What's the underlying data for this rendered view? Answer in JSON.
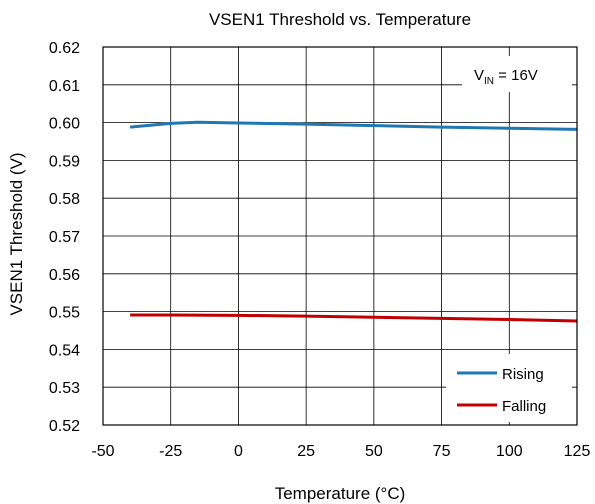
{
  "chart_data": {
    "type": "line",
    "title": "VSEN1 Threshold vs. Temperature",
    "xlabel": "Temperature (°C)",
    "ylabel": "VSEN1 Threshold  (V)",
    "xlim": [
      -50,
      125
    ],
    "ylim": [
      0.52,
      0.62
    ],
    "xticks": [
      -50,
      -25,
      0,
      25,
      50,
      75,
      100,
      125
    ],
    "yticks": [
      0.52,
      0.53,
      0.54,
      0.55,
      0.56,
      0.57,
      0.58,
      0.59,
      0.6,
      0.61,
      0.62
    ],
    "xtick_labels": [
      "-50",
      "-25",
      "0",
      "25",
      "50",
      "75",
      "100",
      "125"
    ],
    "ytick_labels": [
      "0.52",
      "0.53",
      "0.54",
      "0.55",
      "0.56",
      "0.57",
      "0.58",
      "0.59",
      "0.60",
      "0.61",
      "0.62"
    ],
    "grid": true,
    "annotation": {
      "symbol": "V",
      "subscript": "IN",
      "text": " = 16V"
    },
    "legend": {
      "placement": "bottom-right"
    },
    "series": [
      {
        "name": "Rising",
        "color": "#1f77b4",
        "x": [
          -40,
          -25,
          -15,
          0,
          25,
          50,
          75,
          100,
          125
        ],
        "y": [
          0.5988,
          0.5998,
          0.6001,
          0.5999,
          0.5996,
          0.5992,
          0.5988,
          0.5985,
          0.5982
        ]
      },
      {
        "name": "Falling",
        "color": "#c00000",
        "x": [
          -40,
          -25,
          0,
          25,
          50,
          75,
          100,
          125
        ],
        "y": [
          0.5491,
          0.5491,
          0.549,
          0.5488,
          0.5485,
          0.5482,
          0.5479,
          0.5475
        ]
      }
    ]
  }
}
